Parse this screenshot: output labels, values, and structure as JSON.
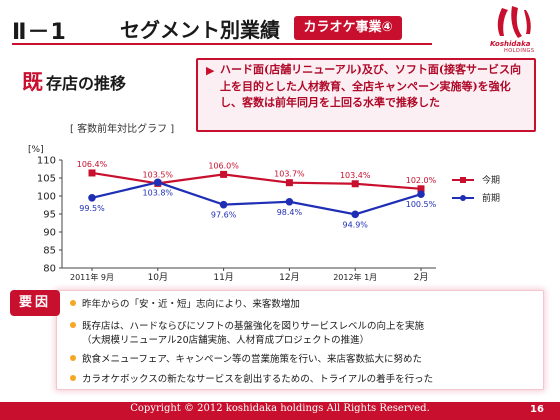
{
  "header": {
    "section_number": "Ⅱ－1",
    "title": "セグメント別業績",
    "tag": "カラオケ事業④",
    "logo_name": "Koshidaka",
    "logo_sub": "HOLDINGS"
  },
  "subtitle": {
    "first_char": "既",
    "rest": "存店の推移"
  },
  "callout": {
    "bullet": "▶",
    "text": "ハード面(店舗リニューアル)及び、ソフト面(接客サービス向上を目的とした人材教育、全店キャンペーン実施等)を強化し、客数は前年同月を上回る水準で推移した"
  },
  "chart_label": "[ 客数前年対比グラフ ]",
  "chart_data": {
    "type": "line",
    "title": "客数前年対比グラフ",
    "ylabel": "[%]",
    "ylim": [
      80,
      110
    ],
    "yticks": [
      80,
      85,
      90,
      95,
      100,
      105,
      110
    ],
    "categories": [
      "2011年 9月",
      "10月",
      "11月",
      "12月",
      "2012年 1月",
      "2月"
    ],
    "series": [
      {
        "name": "今期",
        "color": "#c8102e",
        "marker": "square",
        "values": [
          106.4,
          103.5,
          106.0,
          103.7,
          103.4,
          102.0
        ],
        "labels": [
          "106.4%",
          "103.5%",
          "106.0%",
          "103.7%",
          "103.4%",
          "102.0%"
        ]
      },
      {
        "name": "前期",
        "color": "#1f2fb5",
        "marker": "circle",
        "values": [
          99.5,
          103.8,
          97.6,
          98.4,
          94.9,
          100.5
        ],
        "labels": [
          "99.5%",
          "103.8%",
          "97.6%",
          "98.4%",
          "94.9%",
          "100.5%"
        ]
      }
    ],
    "legend": "right",
    "grid": false
  },
  "cause": {
    "badge": "要因",
    "items": [
      "昨年からの「安・近・短」志向により、来客数増加",
      "既存店は、ハードならびにソフトの基盤強化を図りサービスレベルの向上を実施",
      "（大規模リニューアル20店舗実施、人材育成プロジェクトの推進）",
      "飲食メニューフェア、キャンペーン等の営業施策を行い、来店客数拡大に努めた",
      "カラオケボックスの新たなサービスを創出するための、トライアルの着手を行った"
    ]
  },
  "footer": {
    "copyright": "Copyright © 2012 koshidaka holdings All Rights Reserved.",
    "page": "16"
  },
  "colors": {
    "accent": "#c8102e",
    "prior": "#1f2fb5",
    "bullet": "#f5a623"
  }
}
